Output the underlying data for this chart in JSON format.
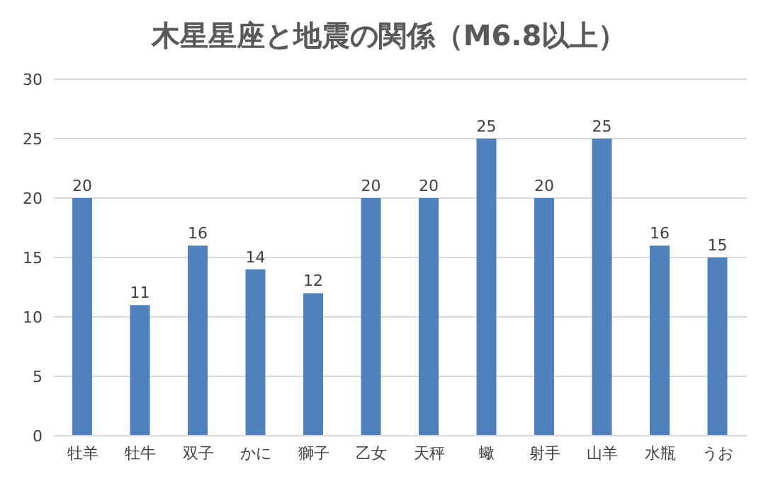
{
  "chart_data": {
    "type": "bar",
    "title": "木星星座と地震の関係（M6.8以上）",
    "categories": [
      "牡羊",
      "牡牛",
      "双子",
      "かに",
      "獅子",
      "乙女",
      "天秤",
      "蠍",
      "射手",
      "山羊",
      "水瓶",
      "うお"
    ],
    "values": [
      20,
      11,
      16,
      14,
      12,
      20,
      20,
      25,
      20,
      25,
      16,
      15
    ],
    "color": "#4f81bd",
    "ylim": [
      0,
      30
    ],
    "yticks": [
      0,
      5,
      10,
      15,
      20,
      25,
      30
    ],
    "grid": "y",
    "data_labels": true
  }
}
